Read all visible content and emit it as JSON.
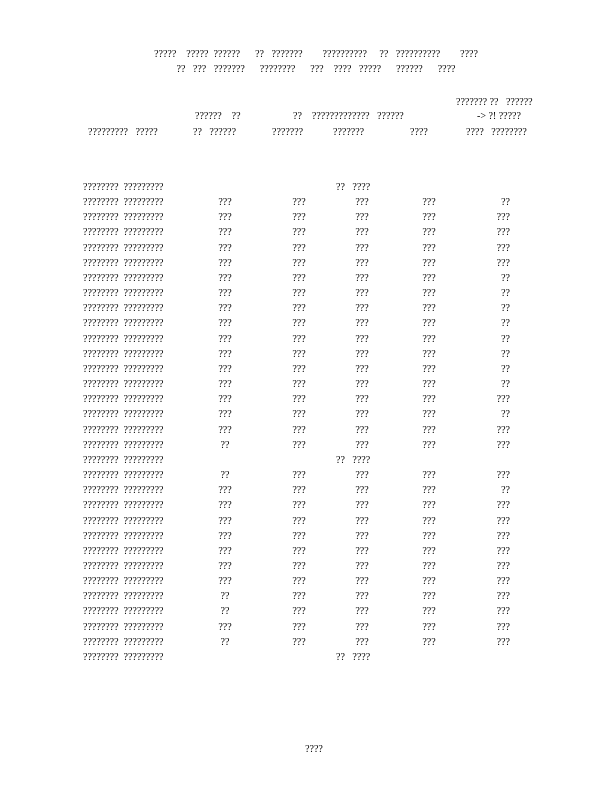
{
  "title": {
    "line1": "?????    ?????  ??????      ??   ???????        ??????????     ??   ??????????        ????",
    "line2": "??   ???   ???????      ????????      ???    ????   ?????      ??????      ????"
  },
  "headers": {
    "h1": "??????    ??",
    "h2": "??    ?????????????   ??????",
    "h3": "??????? ??   ??????",
    "h3b": "-> ?! ?????",
    "col0": "?????????   ?????",
    "col1": "??   ??????",
    "col2": "???????",
    "col3": "???????",
    "col4": "????",
    "col5": "????   ????????"
  },
  "rows": [
    {
      "label": "????????  ?????????",
      "span": "??   ????"
    },
    {
      "label": "????????  ?????????",
      "v": [
        "???",
        "???",
        "???",
        "???",
        "??"
      ]
    },
    {
      "label": "????????  ?????????",
      "v": [
        "???",
        "???",
        "???",
        "???",
        "???"
      ]
    },
    {
      "label": "????????  ?????????",
      "v": [
        "???",
        "???",
        "???",
        "???",
        "???"
      ]
    },
    {
      "label": "????????  ?????????",
      "v": [
        "???",
        "???",
        "???",
        "???",
        "???"
      ]
    },
    {
      "label": "????????  ?????????",
      "v": [
        "???",
        "???",
        "???",
        "???",
        "???"
      ]
    },
    {
      "label": "????????  ?????????",
      "v": [
        "???",
        "???",
        "???",
        "???",
        "??"
      ]
    },
    {
      "label": "????????  ?????????",
      "v": [
        "???",
        "???",
        "???",
        "???",
        "??"
      ]
    },
    {
      "label": "????????  ?????????",
      "v": [
        "???",
        "???",
        "???",
        "???",
        "??"
      ]
    },
    {
      "label": "????????  ?????????",
      "v": [
        "???",
        "???",
        "???",
        "???",
        "??"
      ]
    },
    {
      "label": "????????  ?????????",
      "v": [
        "???",
        "???",
        "???",
        "???",
        "??"
      ]
    },
    {
      "label": "????????  ?????????",
      "v": [
        "???",
        "???",
        "???",
        "???",
        "??"
      ]
    },
    {
      "label": "????????  ?????????",
      "v": [
        "???",
        "???",
        "???",
        "???",
        "??"
      ]
    },
    {
      "label": "????????  ?????????",
      "v": [
        "???",
        "???",
        "???",
        "???",
        "??"
      ]
    },
    {
      "label": "????????  ?????????",
      "v": [
        "???",
        "???",
        "???",
        "???",
        "???"
      ]
    },
    {
      "label": "????????  ?????????",
      "v": [
        "???",
        "???",
        "???",
        "???",
        "??"
      ]
    },
    {
      "label": "????????  ?????????",
      "v": [
        "???",
        "???",
        "???",
        "???",
        "???"
      ]
    },
    {
      "label": "????????  ?????????",
      "v": [
        "??",
        "???",
        "???",
        "???",
        "???"
      ]
    },
    {
      "label": "????????  ?????????",
      "span": "??   ????"
    },
    {
      "label": "????????  ?????????",
      "v": [
        "??",
        "???",
        "???",
        "???",
        "???"
      ]
    },
    {
      "label": "????????  ?????????",
      "v": [
        "???",
        "???",
        "???",
        "???",
        "??"
      ]
    },
    {
      "label": "????????  ?????????",
      "v": [
        "???",
        "???",
        "???",
        "???",
        "???"
      ]
    },
    {
      "label": "????????  ?????????",
      "v": [
        "???",
        "???",
        "???",
        "???",
        "???"
      ]
    },
    {
      "label": "????????  ?????????",
      "v": [
        "???",
        "???",
        "???",
        "???",
        "???"
      ]
    },
    {
      "label": "????????  ?????????",
      "v": [
        "???",
        "???",
        "???",
        "???",
        "???"
      ]
    },
    {
      "label": "????????  ?????????",
      "v": [
        "???",
        "???",
        "???",
        "???",
        "???"
      ]
    },
    {
      "label": "????????  ?????????",
      "v": [
        "???",
        "???",
        "???",
        "???",
        "???"
      ]
    },
    {
      "label": "????????  ?????????",
      "v": [
        "??",
        "???",
        "???",
        "???",
        "???"
      ]
    },
    {
      "label": "????????  ?????????",
      "v": [
        "??",
        "???",
        "???",
        "???",
        "???"
      ]
    },
    {
      "label": "????????  ?????????",
      "v": [
        "???",
        "???",
        "???",
        "???",
        "???"
      ]
    },
    {
      "label": "????????  ?????????",
      "v": [
        "??",
        "???",
        "???",
        "???",
        "???"
      ]
    },
    {
      "label": "????????  ?????????",
      "span": "??   ????"
    }
  ],
  "footer": {
    "page": "????"
  }
}
